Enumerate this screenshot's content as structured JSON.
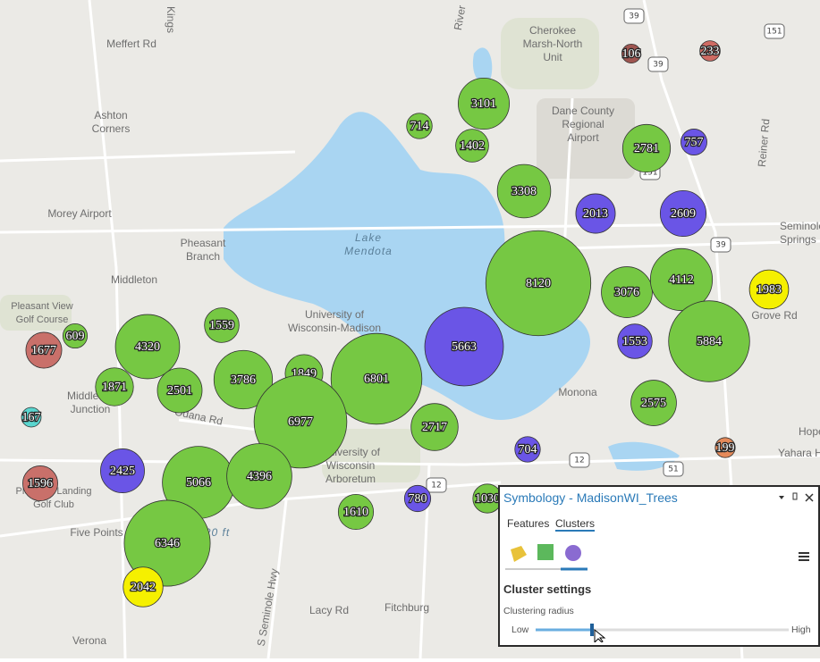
{
  "places": [
    {
      "lines": [
        "Meffert Rd"
      ]
    },
    {
      "lines": [
        "Kings"
      ]
    },
    {
      "lines": [
        "Ashton",
        "Corners"
      ]
    },
    {
      "lines": [
        "Morey Airport"
      ]
    },
    {
      "lines": [
        "Pheasant",
        "Branch"
      ]
    },
    {
      "lines": [
        "Middleton"
      ]
    },
    {
      "lines": [
        "Pleasant View",
        "Golf Course"
      ]
    },
    {
      "lines": [
        "Lake",
        "Mendota"
      ]
    },
    {
      "lines": [
        "University of",
        "Wisconsin-Madison"
      ]
    },
    {
      "lines": [
        "Middleton",
        "Junction"
      ]
    },
    {
      "lines": [
        "Odana Rd"
      ]
    },
    {
      "lines": [
        "University of",
        "Wisconsin",
        "Arboretum"
      ]
    },
    {
      "lines": [
        "Cherokee",
        "Marsh-North",
        "Unit"
      ]
    },
    {
      "lines": [
        "Dane County",
        "Regional",
        "Airport"
      ]
    },
    {
      "lines": [
        "Monona"
      ]
    },
    {
      "lines": [
        "Seminole",
        "Springs"
      ]
    },
    {
      "lines": [
        "Grove Rd"
      ]
    },
    {
      "lines": [
        "Hope"
      ]
    },
    {
      "lines": [
        "Yahara Hills"
      ]
    },
    {
      "lines": [
        "Fitchburg"
      ]
    },
    {
      "lines": [
        "Lacy Rd"
      ]
    },
    {
      "lines": [
        "Verona"
      ]
    },
    {
      "lines": [
        "Five Points"
      ]
    },
    {
      "lines": [
        "Pleasant Landing",
        "Golf Club"
      ]
    },
    {
      "lines": [
        "S Seminole Hwy"
      ]
    },
    {
      "lines": [
        "River"
      ]
    },
    {
      "lines": [
        "Reiner Rd"
      ]
    },
    {
      "lines": [
        "20 ft"
      ]
    }
  ],
  "shields": [
    "39",
    "39",
    "151",
    "151",
    "39",
    "12",
    "12",
    "51"
  ],
  "clusters": [
    {
      "count": 1030,
      "color": "#76c843"
    },
    {
      "count": 3101,
      "color": "#76c843"
    },
    {
      "count": 714,
      "color": "#76c843"
    },
    {
      "count": 1402,
      "color": "#76c843"
    },
    {
      "count": 3308,
      "color": "#76c843"
    },
    {
      "count": 2013,
      "color": "#6a55e6"
    },
    {
      "count": 2609,
      "color": "#6a55e6"
    },
    {
      "count": 2781,
      "color": "#76c843"
    },
    {
      "count": 757,
      "color": "#6a55e6"
    },
    {
      "count": 106,
      "color": "#9e5550"
    },
    {
      "count": 233,
      "color": "#cf6b63"
    },
    {
      "count": 8120,
      "color": "#76c843"
    },
    {
      "count": 3076,
      "color": "#76c843"
    },
    {
      "count": 4112,
      "color": "#76c843"
    },
    {
      "count": 1983,
      "color": "#f5f000"
    },
    {
      "count": 5884,
      "color": "#76c843"
    },
    {
      "count": 1553,
      "color": "#6a55e6"
    },
    {
      "count": 2575,
      "color": "#76c843"
    },
    {
      "count": 5663,
      "color": "#6a55e6"
    },
    {
      "count": 6801,
      "color": "#76c843"
    },
    {
      "count": 1849,
      "color": "#76c843"
    },
    {
      "count": 3786,
      "color": "#76c843"
    },
    {
      "count": 6977,
      "color": "#76c843"
    },
    {
      "count": 2717,
      "color": "#76c843"
    },
    {
      "count": 704,
      "color": "#6a55e6"
    },
    {
      "count": 199,
      "color": "#e58a5a"
    },
    {
      "count": 1559,
      "color": "#76c843"
    },
    {
      "count": 4320,
      "color": "#76c843"
    },
    {
      "count": 609,
      "color": "#76c843"
    },
    {
      "count": 1677,
      "color": "#c9706a"
    },
    {
      "count": 1871,
      "color": "#76c843"
    },
    {
      "count": 2501,
      "color": "#76c843"
    },
    {
      "count": 167,
      "color": "#5ad6cf"
    },
    {
      "count": 2425,
      "color": "#6a55e6"
    },
    {
      "count": 5066,
      "color": "#76c843"
    },
    {
      "count": 4396,
      "color": "#76c843"
    },
    {
      "count": 1596,
      "color": "#c9706a"
    },
    {
      "count": 780,
      "color": "#6a55e6"
    },
    {
      "count": 1610,
      "color": "#76c843"
    },
    {
      "count": 6346,
      "color": "#76c843"
    },
    {
      "count": 2042,
      "color": "#f5f000"
    }
  ],
  "panel": {
    "title": "Symbology - MadisonWI_Trees",
    "tabs": [
      "Features",
      "Clusters"
    ],
    "section": "Cluster settings",
    "setting": "Clustering radius",
    "low": "Low",
    "high": "High"
  }
}
